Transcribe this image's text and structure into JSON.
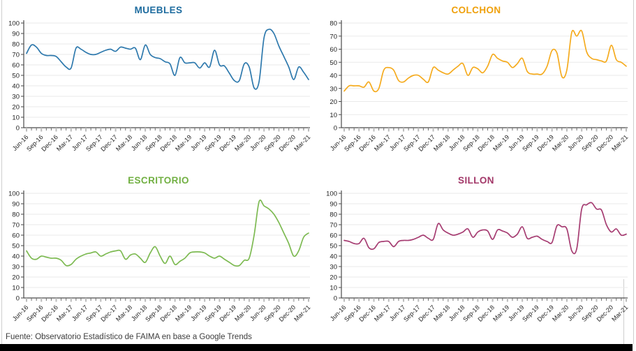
{
  "page": {
    "footer": "Fuente: Observatorio Estadístico de FAIMA en base a Google Trends"
  },
  "style": {
    "grid_color": "#EAEAEA",
    "axis_color": "#4A4A4A",
    "month_tick_color": "#6E6E6E",
    "quarter_tick_color": "#BBBBBB",
    "tick_label_color": "#1F1F1F",
    "footer_color": "#3C3C3C",
    "frame_border_color": "#CFCFCF",
    "bottom_bar_color": "#000000"
  },
  "chart_data": [
    {
      "type": "line",
      "title": "MUEBLES",
      "title_color": "#1E6C9F",
      "line_color": "#2E79AD",
      "ylim": [
        0,
        100
      ],
      "ytick_step": 10,
      "grid": true,
      "legend": "none",
      "frequency": "monthly",
      "x_range": [
        "Jun-16",
        "Mar-21"
      ],
      "x_tick_labels": [
        "Jun-16",
        "Sep-16",
        "Dec-16",
        "Mar-17",
        "Jun-17",
        "Sep-17",
        "Dec-17",
        "Mar-18",
        "Jun-18",
        "Sep-18",
        "Dec-18",
        "Mar-19",
        "Jun-19",
        "Sep-19",
        "Dec-19",
        "Mar-20",
        "Jun-20",
        "Sep-20",
        "Dec-20",
        "Mar-21"
      ],
      "values": [
        71,
        79,
        77,
        71,
        69,
        69,
        68,
        63,
        58,
        57,
        76,
        75,
        72,
        70,
        70,
        72,
        74,
        75,
        73,
        77,
        76,
        75,
        76,
        65,
        79,
        70,
        67,
        66,
        63,
        61,
        50,
        67,
        62,
        62,
        62,
        57,
        62,
        58,
        74,
        60,
        59,
        52,
        45,
        45,
        61,
        58,
        38,
        44,
        86,
        94,
        90,
        78,
        68,
        58,
        46,
        58,
        53,
        46
      ]
    },
    {
      "type": "line",
      "title": "COLCHON",
      "title_color": "#EFA00B",
      "line_color": "#F5AB1E",
      "ylim": [
        0,
        80
      ],
      "ytick_step": 10,
      "grid": true,
      "legend": "none",
      "frequency": "monthly",
      "x_range": [
        "Jun-16",
        "Mar-21"
      ],
      "x_tick_labels": [
        "Jun-16",
        "Sep-16",
        "Dec-16",
        "Mar-17",
        "Jun-17",
        "Sep-17",
        "Dec-17",
        "Mar-18",
        "Jun-18",
        "Sep-18",
        "Dec-18",
        "Mar-19",
        "Jun-19",
        "Sep-19",
        "Dec-19",
        "Mar-20",
        "Jun-20",
        "Sep-20",
        "Dec-20",
        "Mar-21"
      ],
      "values": [
        28,
        32,
        32,
        32,
        31,
        35,
        28,
        30,
        44,
        46,
        44,
        36,
        35,
        38,
        40,
        40,
        37,
        35,
        46,
        44,
        42,
        41,
        44,
        47,
        49,
        40,
        46,
        45,
        42,
        47,
        56,
        53,
        51,
        50,
        46,
        49,
        53,
        43,
        41,
        41,
        41,
        47,
        59,
        57,
        39,
        44,
        73,
        70,
        74,
        58,
        53,
        52,
        51,
        51,
        63,
        52,
        50,
        47
      ]
    },
    {
      "type": "line",
      "title": "ESCRITORIO",
      "title_color": "#72B043",
      "line_color": "#7DBA52",
      "ylim": [
        0,
        100
      ],
      "ytick_step": 10,
      "grid": true,
      "legend": "none",
      "frequency": "monthly",
      "x_range": [
        "Jun-16",
        "Mar-21"
      ],
      "x_tick_labels": [
        "Jun-16",
        "Sep-16",
        "Dec-16",
        "Mar-17",
        "Jun-17",
        "Sep-17",
        "Dec-17",
        "Mar-18",
        "Jun-18",
        "Sep-18",
        "Dec-18",
        "Mar-19",
        "Jun-19",
        "Sep-19",
        "Dec-19",
        "Mar-20",
        "Jun-20",
        "Sep-20",
        "Dec-20",
        "Mar-21"
      ],
      "values": [
        45,
        38,
        37,
        40,
        39,
        38,
        38,
        36,
        31,
        32,
        37,
        40,
        42,
        43,
        44,
        40,
        42,
        44,
        45,
        45,
        37,
        41,
        42,
        38,
        34,
        43,
        49,
        40,
        33,
        40,
        32,
        35,
        38,
        43,
        44,
        44,
        43,
        40,
        38,
        40,
        37,
        34,
        31,
        31,
        36,
        38,
        60,
        92,
        88,
        85,
        80,
        72,
        62,
        52,
        40,
        45,
        58,
        62
      ]
    },
    {
      "type": "line",
      "title": "SILLON",
      "title_color": "#A23768",
      "line_color": "#A63D72",
      "ylim": [
        0,
        100
      ],
      "ytick_step": 10,
      "grid": true,
      "legend": "none",
      "frequency": "monthly",
      "x_range": [
        "Jun-16",
        "Mar-21"
      ],
      "x_tick_labels": [
        "Jun-16",
        "Sep-16",
        "Dec-16",
        "Mar-17",
        "Jun-17",
        "Sep-17",
        "Dec-17",
        "Mar-18",
        "Jun-18",
        "Sep-18",
        "Dec-18",
        "Mar-19",
        "Jun-19",
        "Sep-19",
        "Dec-19",
        "Mar-20",
        "Jun-20",
        "Sep-20",
        "Dec-20",
        "Mar-21"
      ],
      "values": [
        55,
        54,
        52,
        52,
        57,
        48,
        47,
        53,
        54,
        54,
        49,
        54,
        55,
        55,
        56,
        58,
        60,
        57,
        56,
        71,
        65,
        62,
        60,
        61,
        63,
        66,
        58,
        63,
        65,
        64,
        56,
        65,
        64,
        62,
        58,
        61,
        68,
        57,
        58,
        59,
        56,
        54,
        53,
        69,
        68,
        66,
        45,
        47,
        85,
        89,
        91,
        85,
        84,
        70,
        63,
        66,
        60,
        61
      ]
    }
  ]
}
